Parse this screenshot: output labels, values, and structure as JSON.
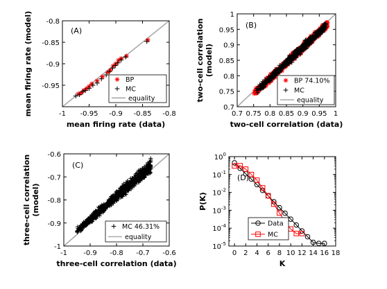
{
  "chart_data": [
    {
      "panel_label": "(A)",
      "type": "scatter",
      "xlabel": "mean firing rate (data)",
      "ylabel": "mean firing rate (model)",
      "xlim": [
        -1,
        -0.8
      ],
      "ylim": [
        -1,
        -0.8
      ],
      "xticks": [
        "-1",
        "-0.95",
        "-0.9",
        "-0.85",
        "-0.8"
      ],
      "yticks": [
        "-0.95",
        "-0.9",
        "-0.85",
        "-0.8"
      ],
      "series": [
        {
          "name": "BP",
          "marker": "asterisk",
          "color": "#ff0000",
          "points": [
            [
              -0.97,
              -0.97
            ],
            [
              -0.965,
              -0.968
            ],
            [
              -0.96,
              -0.962
            ],
            [
              -0.955,
              -0.958
            ],
            [
              -0.95,
              -0.953
            ],
            [
              -0.945,
              -0.947
            ],
            [
              -0.935,
              -0.94
            ],
            [
              -0.925,
              -0.93
            ],
            [
              -0.915,
              -0.92
            ],
            [
              -0.91,
              -0.915
            ],
            [
              -0.905,
              -0.905
            ],
            [
              -0.9,
              -0.9
            ],
            [
              -0.895,
              -0.892
            ],
            [
              -0.89,
              -0.888
            ],
            [
              -0.88,
              -0.882
            ],
            [
              -0.84,
              -0.845
            ]
          ]
        },
        {
          "name": "MC",
          "marker": "plus",
          "color": "#000000",
          "points": [
            [
              -0.975,
              -0.975
            ],
            [
              -0.968,
              -0.972
            ],
            [
              -0.962,
              -0.965
            ],
            [
              -0.957,
              -0.962
            ],
            [
              -0.95,
              -0.957
            ],
            [
              -0.943,
              -0.95
            ],
            [
              -0.935,
              -0.945
            ],
            [
              -0.927,
              -0.935
            ],
            [
              -0.918,
              -0.926
            ],
            [
              -0.912,
              -0.918
            ],
            [
              -0.906,
              -0.91
            ],
            [
              -0.901,
              -0.904
            ],
            [
              -0.896,
              -0.898
            ],
            [
              -0.89,
              -0.891
            ],
            [
              -0.882,
              -0.884
            ],
            [
              -0.842,
              -0.848
            ]
          ]
        }
      ],
      "reference_line": {
        "name": "equality",
        "color": "#aaaaaa"
      },
      "legend": "bottom-right"
    },
    {
      "panel_label": "(B)",
      "type": "scatter",
      "xlabel": "two-cell correlation (data)",
      "ylabel": "two-cell correlation (model)",
      "xlim": [
        0.7,
        1
      ],
      "ylim": [
        0.7,
        1
      ],
      "xticks": [
        "0.7",
        "0.75",
        "0.8",
        "0.85",
        "0.9",
        "0.95",
        "1"
      ],
      "yticks": [
        "0.7",
        "0.75",
        "0.8",
        "0.85",
        "0.9",
        "0.95",
        "1"
      ],
      "series": [
        {
          "name": "BP 74.10%",
          "marker": "asterisk",
          "color": "#ff0000",
          "range": [
            0.75,
            0.975
          ],
          "spread": 0.012
        },
        {
          "name": "MC",
          "marker": "plus",
          "color": "#000000",
          "range": [
            0.755,
            0.97
          ],
          "spread": 0.012
        }
      ],
      "reference_line": {
        "name": "equality",
        "color": "#aaaaaa"
      },
      "legend": "bottom-right"
    },
    {
      "panel_label": "(C)",
      "type": "scatter",
      "xlabel": "three-cell correlation (data)",
      "ylabel": "three-cell correlation (model)",
      "xlim": [
        -1,
        -0.6
      ],
      "ylim": [
        -1,
        -0.6
      ],
      "xticks": [
        "-1",
        "-0.9",
        "-0.8",
        "-0.7",
        "-0.6"
      ],
      "yticks": [
        "-1",
        "-0.9",
        "-0.8",
        "-0.7",
        "-0.6"
      ],
      "series": [
        {
          "name": "MC 46.31%",
          "marker": "plus",
          "color": "#000000",
          "range": [
            -0.95,
            -0.67
          ],
          "spread": 0.035
        }
      ],
      "reference_line": {
        "name": "equality",
        "color": "#aaaaaa"
      },
      "legend": "bottom-right"
    },
    {
      "panel_label": "(D)",
      "type": "line",
      "xlabel": "K",
      "ylabel": "P(K)",
      "xlim": [
        -1,
        18
      ],
      "ylim": [
        1e-05,
        1
      ],
      "yscale": "log",
      "xticks": [
        "0",
        "2",
        "4",
        "6",
        "8",
        "10",
        "12",
        "14",
        "16",
        "18"
      ],
      "yticks": [
        "10^0",
        "10^-1",
        "10^-2",
        "10^-3",
        "10^-4",
        "10^-5"
      ],
      "series": [
        {
          "name": "Data",
          "marker": "circle",
          "color": "#000000",
          "x": [
            0,
            1,
            2,
            3,
            4,
            5,
            6,
            7,
            8,
            9,
            10,
            11,
            12,
            13,
            14,
            15,
            16
          ],
          "values": [
            0.45,
            0.22,
            0.11,
            0.055,
            0.027,
            0.013,
            0.0063,
            0.003,
            0.0014,
            0.00068,
            0.00032,
            0.00015,
            7e-05,
            3.3e-05,
            1.6e-05,
            1.4e-05,
            1.4e-05
          ]
        },
        {
          "name": "MC",
          "marker": "square",
          "color": "#ff0000",
          "x": [
            0,
            1,
            2,
            3,
            4,
            5,
            6,
            7,
            8,
            9,
            10,
            11,
            12
          ],
          "values": [
            0.3,
            0.31,
            0.2,
            0.1,
            0.048,
            0.018,
            0.0065,
            0.0022,
            0.0007,
            0.00022,
            9e-05,
            5e-05,
            5e-05
          ]
        }
      ],
      "legend": "bottom-left"
    }
  ]
}
